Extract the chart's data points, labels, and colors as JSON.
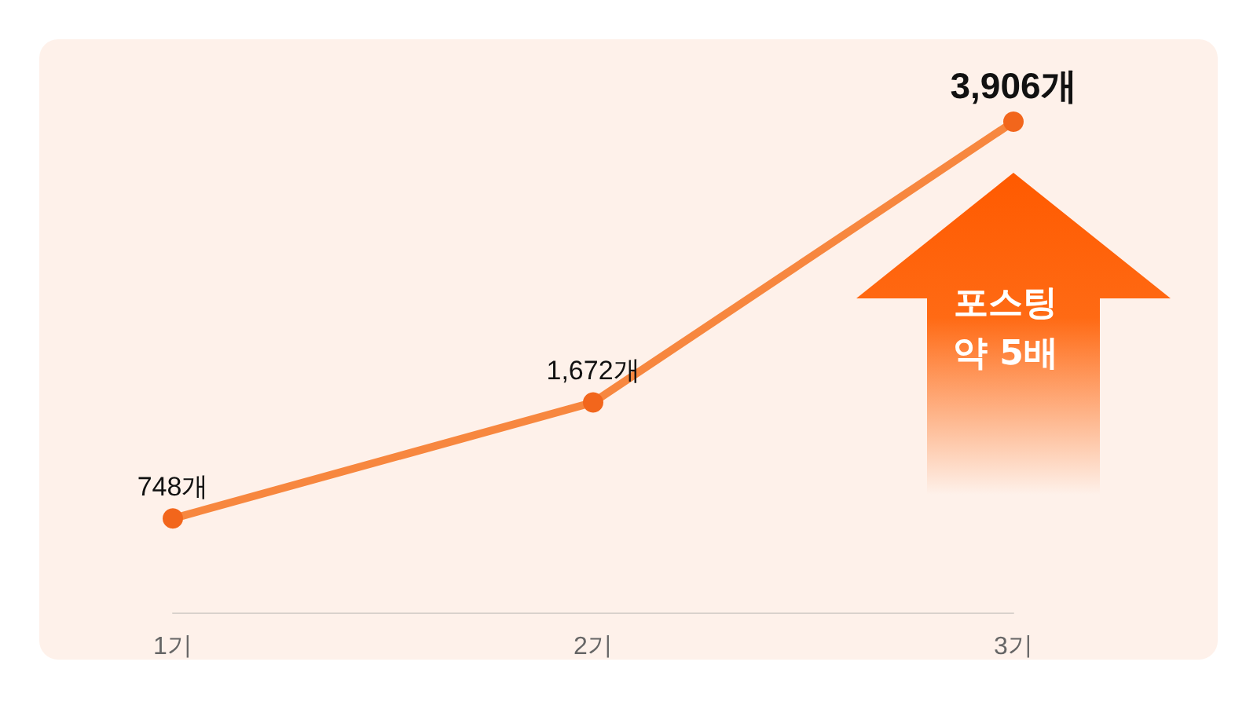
{
  "chart_data": {
    "type": "line",
    "categories": [
      "1기",
      "2기",
      "3기"
    ],
    "series": [
      {
        "color": "#f7873f",
        "values": [
          748,
          1672,
          3906
        ],
        "value_labels": [
          "748개",
          "1,672개",
          "3,906개"
        ]
      }
    ],
    "marker": "circle",
    "tick_labels": "x",
    "annotations": [
      "포스팅\n약 5배"
    ]
  }
}
